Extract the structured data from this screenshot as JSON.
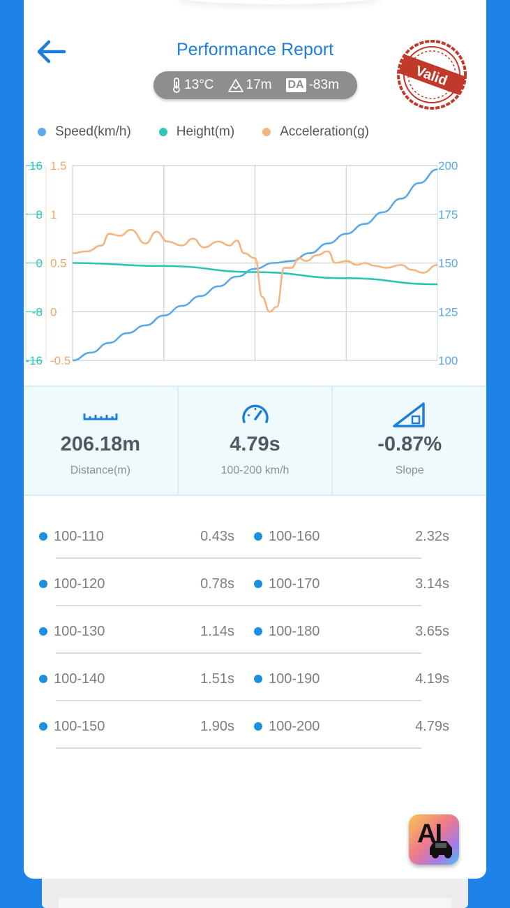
{
  "header": {
    "title": "Performance Report",
    "back_icon": "arrow-left-icon",
    "stamp_text": "Valid",
    "conditions": {
      "temperature": "13°C",
      "altitude": "17m",
      "da_label": "DA",
      "density_altitude": "-83m"
    }
  },
  "legend": [
    {
      "label": "Speed(km/h)",
      "color": "#5aa9e6"
    },
    {
      "label": "Height(m)",
      "color": "#2ec4b6"
    },
    {
      "label": "Acceleration(g)",
      "color": "#f5b480"
    }
  ],
  "chart_data": {
    "type": "line",
    "grid": true,
    "axes": {
      "left_height": {
        "ticks": [
          "16",
          "8",
          "0",
          "-8",
          "-16"
        ],
        "range": [
          -16,
          16
        ],
        "color": "#2ec4b6"
      },
      "left_accel": {
        "ticks": [
          "1.5",
          "1",
          "0.5",
          "0",
          "-0.5"
        ],
        "range": [
          -0.5,
          1.5
        ],
        "color": "#f0a868"
      },
      "right_speed": {
        "ticks": [
          "200",
          "175",
          "150",
          "125",
          "100"
        ],
        "range": [
          100,
          200
        ],
        "color": "#5aa9e6"
      }
    },
    "series": [
      {
        "name": "Speed(km/h)",
        "axis": "right_speed",
        "color": "#5aa9e6",
        "x": [
          0,
          0.05,
          0.1,
          0.15,
          0.2,
          0.25,
          0.3,
          0.35,
          0.4,
          0.45,
          0.5,
          0.55,
          0.6,
          0.65,
          0.7,
          0.75,
          0.8,
          0.85,
          0.9,
          0.95,
          1.0
        ],
        "y": [
          100,
          104,
          109,
          114,
          118,
          123,
          128,
          133,
          138,
          143,
          147,
          150,
          151,
          155,
          160,
          165,
          170,
          176,
          183,
          191,
          198
        ]
      },
      {
        "name": "Height(m)",
        "axis": "left_height",
        "color": "#2ec4b6",
        "x": [
          0,
          0.25,
          0.5,
          0.75,
          1.0
        ],
        "y": [
          0,
          -0.5,
          -1.5,
          -2.5,
          -3.5
        ]
      },
      {
        "name": "Acceleration(g)",
        "axis": "left_accel",
        "color": "#f5b480",
        "x": [
          0,
          0.04,
          0.08,
          0.1,
          0.13,
          0.16,
          0.2,
          0.23,
          0.26,
          0.3,
          0.33,
          0.36,
          0.4,
          0.43,
          0.45,
          0.47,
          0.5,
          0.52,
          0.54,
          0.56,
          0.58,
          0.6,
          0.62,
          0.64,
          0.67,
          0.7,
          0.72,
          0.75,
          0.78,
          0.8,
          0.83,
          0.86,
          0.9,
          0.93,
          0.96,
          1.0
        ],
        "y": [
          0.6,
          0.62,
          0.68,
          0.8,
          0.78,
          0.84,
          0.7,
          0.82,
          0.72,
          0.68,
          0.75,
          0.66,
          0.72,
          0.68,
          0.73,
          0.6,
          0.55,
          0.15,
          0.0,
          0.05,
          0.45,
          0.45,
          0.55,
          0.52,
          0.58,
          0.62,
          0.5,
          0.52,
          0.48,
          0.5,
          0.47,
          0.45,
          0.48,
          0.43,
          0.4,
          0.48
        ]
      }
    ]
  },
  "stats": [
    {
      "icon": "ruler-icon",
      "value": "206.18m",
      "label": "Distance(m)"
    },
    {
      "icon": "speedometer-icon",
      "value": "4.79s",
      "label": "100-200 km/h"
    },
    {
      "icon": "slope-icon",
      "value": "-0.87%",
      "label": "Slope"
    }
  ],
  "splits_left": [
    {
      "range": "100-110",
      "time": "0.43s"
    },
    {
      "range": "100-120",
      "time": "0.78s"
    },
    {
      "range": "100-130",
      "time": "1.14s"
    },
    {
      "range": "100-140",
      "time": "1.51s"
    },
    {
      "range": "100-150",
      "time": "1.90s"
    }
  ],
  "splits_right": [
    {
      "range": "100-160",
      "time": "2.32s"
    },
    {
      "range": "100-170",
      "time": "3.14s"
    },
    {
      "range": "100-180",
      "time": "3.65s"
    },
    {
      "range": "100-190",
      "time": "4.19s"
    },
    {
      "range": "100-200",
      "time": "4.79s"
    }
  ],
  "ai_button": {
    "label": "AI",
    "icon": "ai-car-icon"
  }
}
